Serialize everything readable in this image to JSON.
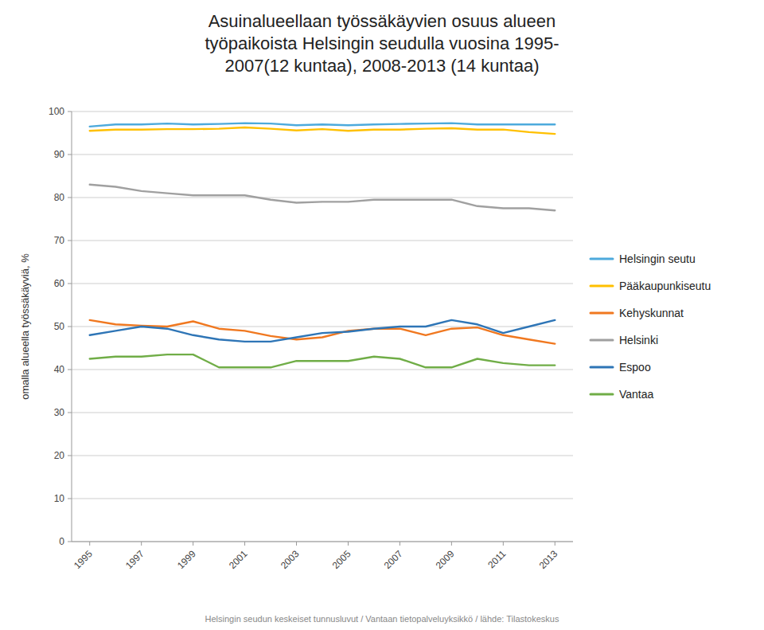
{
  "chart_data": {
    "type": "line",
    "title": "Asuinalueellaan työssäkäyvien osuus alueen\ntyöpaikoista Helsingin seudulla vuosina 1995-\n2007(12 kuntaa), 2008-2013 (14 kuntaa)",
    "ylabel": "omalla alueella työssäkäyviä, %",
    "footnote": "Helsingin seudun keskeiset tunnusluvut / Vantaan tietopalveluyksikkö / lähde: Tilastokeskus",
    "x": [
      1995,
      1996,
      1997,
      1998,
      1999,
      2000,
      2001,
      2002,
      2003,
      2004,
      2005,
      2006,
      2007,
      2008,
      2009,
      2010,
      2011,
      2012,
      2013
    ],
    "series": [
      {
        "name": "Helsingin seutu",
        "color": "#4DAADC",
        "values": [
          96.5,
          97.0,
          97.0,
          97.2,
          97.0,
          97.1,
          97.3,
          97.2,
          96.8,
          97.0,
          96.8,
          97.0,
          97.1,
          97.2,
          97.3,
          97.0,
          97.0,
          97.0,
          97.0
        ]
      },
      {
        "name": "Pääkaupunkiseutu",
        "color": "#FFC000",
        "values": [
          95.5,
          95.8,
          95.8,
          95.9,
          95.9,
          96.0,
          96.3,
          96.0,
          95.6,
          95.9,
          95.5,
          95.8,
          95.8,
          96.0,
          96.1,
          95.8,
          95.8,
          95.2,
          94.8
        ]
      },
      {
        "name": "Kehyskunnat",
        "color": "#F07820",
        "values": [
          51.5,
          50.5,
          50.2,
          50.0,
          51.2,
          49.5,
          49.0,
          47.8,
          47.0,
          47.5,
          49.0,
          49.5,
          49.5,
          48.0,
          49.5,
          49.8,
          48.0,
          47.0,
          46.0
        ]
      },
      {
        "name": "Helsinki",
        "color": "#A0A0A0",
        "values": [
          83.0,
          82.5,
          81.5,
          81.0,
          80.5,
          80.5,
          80.5,
          79.5,
          78.8,
          79.0,
          79.0,
          79.5,
          79.5,
          79.5,
          79.5,
          78.0,
          77.5,
          77.5,
          77.0
        ]
      },
      {
        "name": "Espoo",
        "color": "#2E75B6",
        "values": [
          48.0,
          49.0,
          50.0,
          49.5,
          48.0,
          47.0,
          46.5,
          46.5,
          47.5,
          48.5,
          48.8,
          49.5,
          50.0,
          50.0,
          51.5,
          50.5,
          48.5,
          50.0,
          51.5
        ]
      },
      {
        "name": "Vantaa",
        "color": "#70AD47",
        "values": [
          42.5,
          43.0,
          43.0,
          43.5,
          43.5,
          40.5,
          40.5,
          40.5,
          42.0,
          42.0,
          42.0,
          43.0,
          42.5,
          40.5,
          40.5,
          42.5,
          41.5,
          41.0,
          41.0
        ]
      }
    ],
    "xlim": [
      1994.3,
      2013.7
    ],
    "xticks": [
      1995,
      1997,
      1999,
      2001,
      2003,
      2005,
      2007,
      2009,
      2011,
      2013
    ],
    "ylim": [
      0,
      100
    ],
    "yticks": [
      0,
      10,
      20,
      30,
      40,
      50,
      60,
      70,
      80,
      90,
      100
    ],
    "grid": true,
    "legend": "right"
  }
}
